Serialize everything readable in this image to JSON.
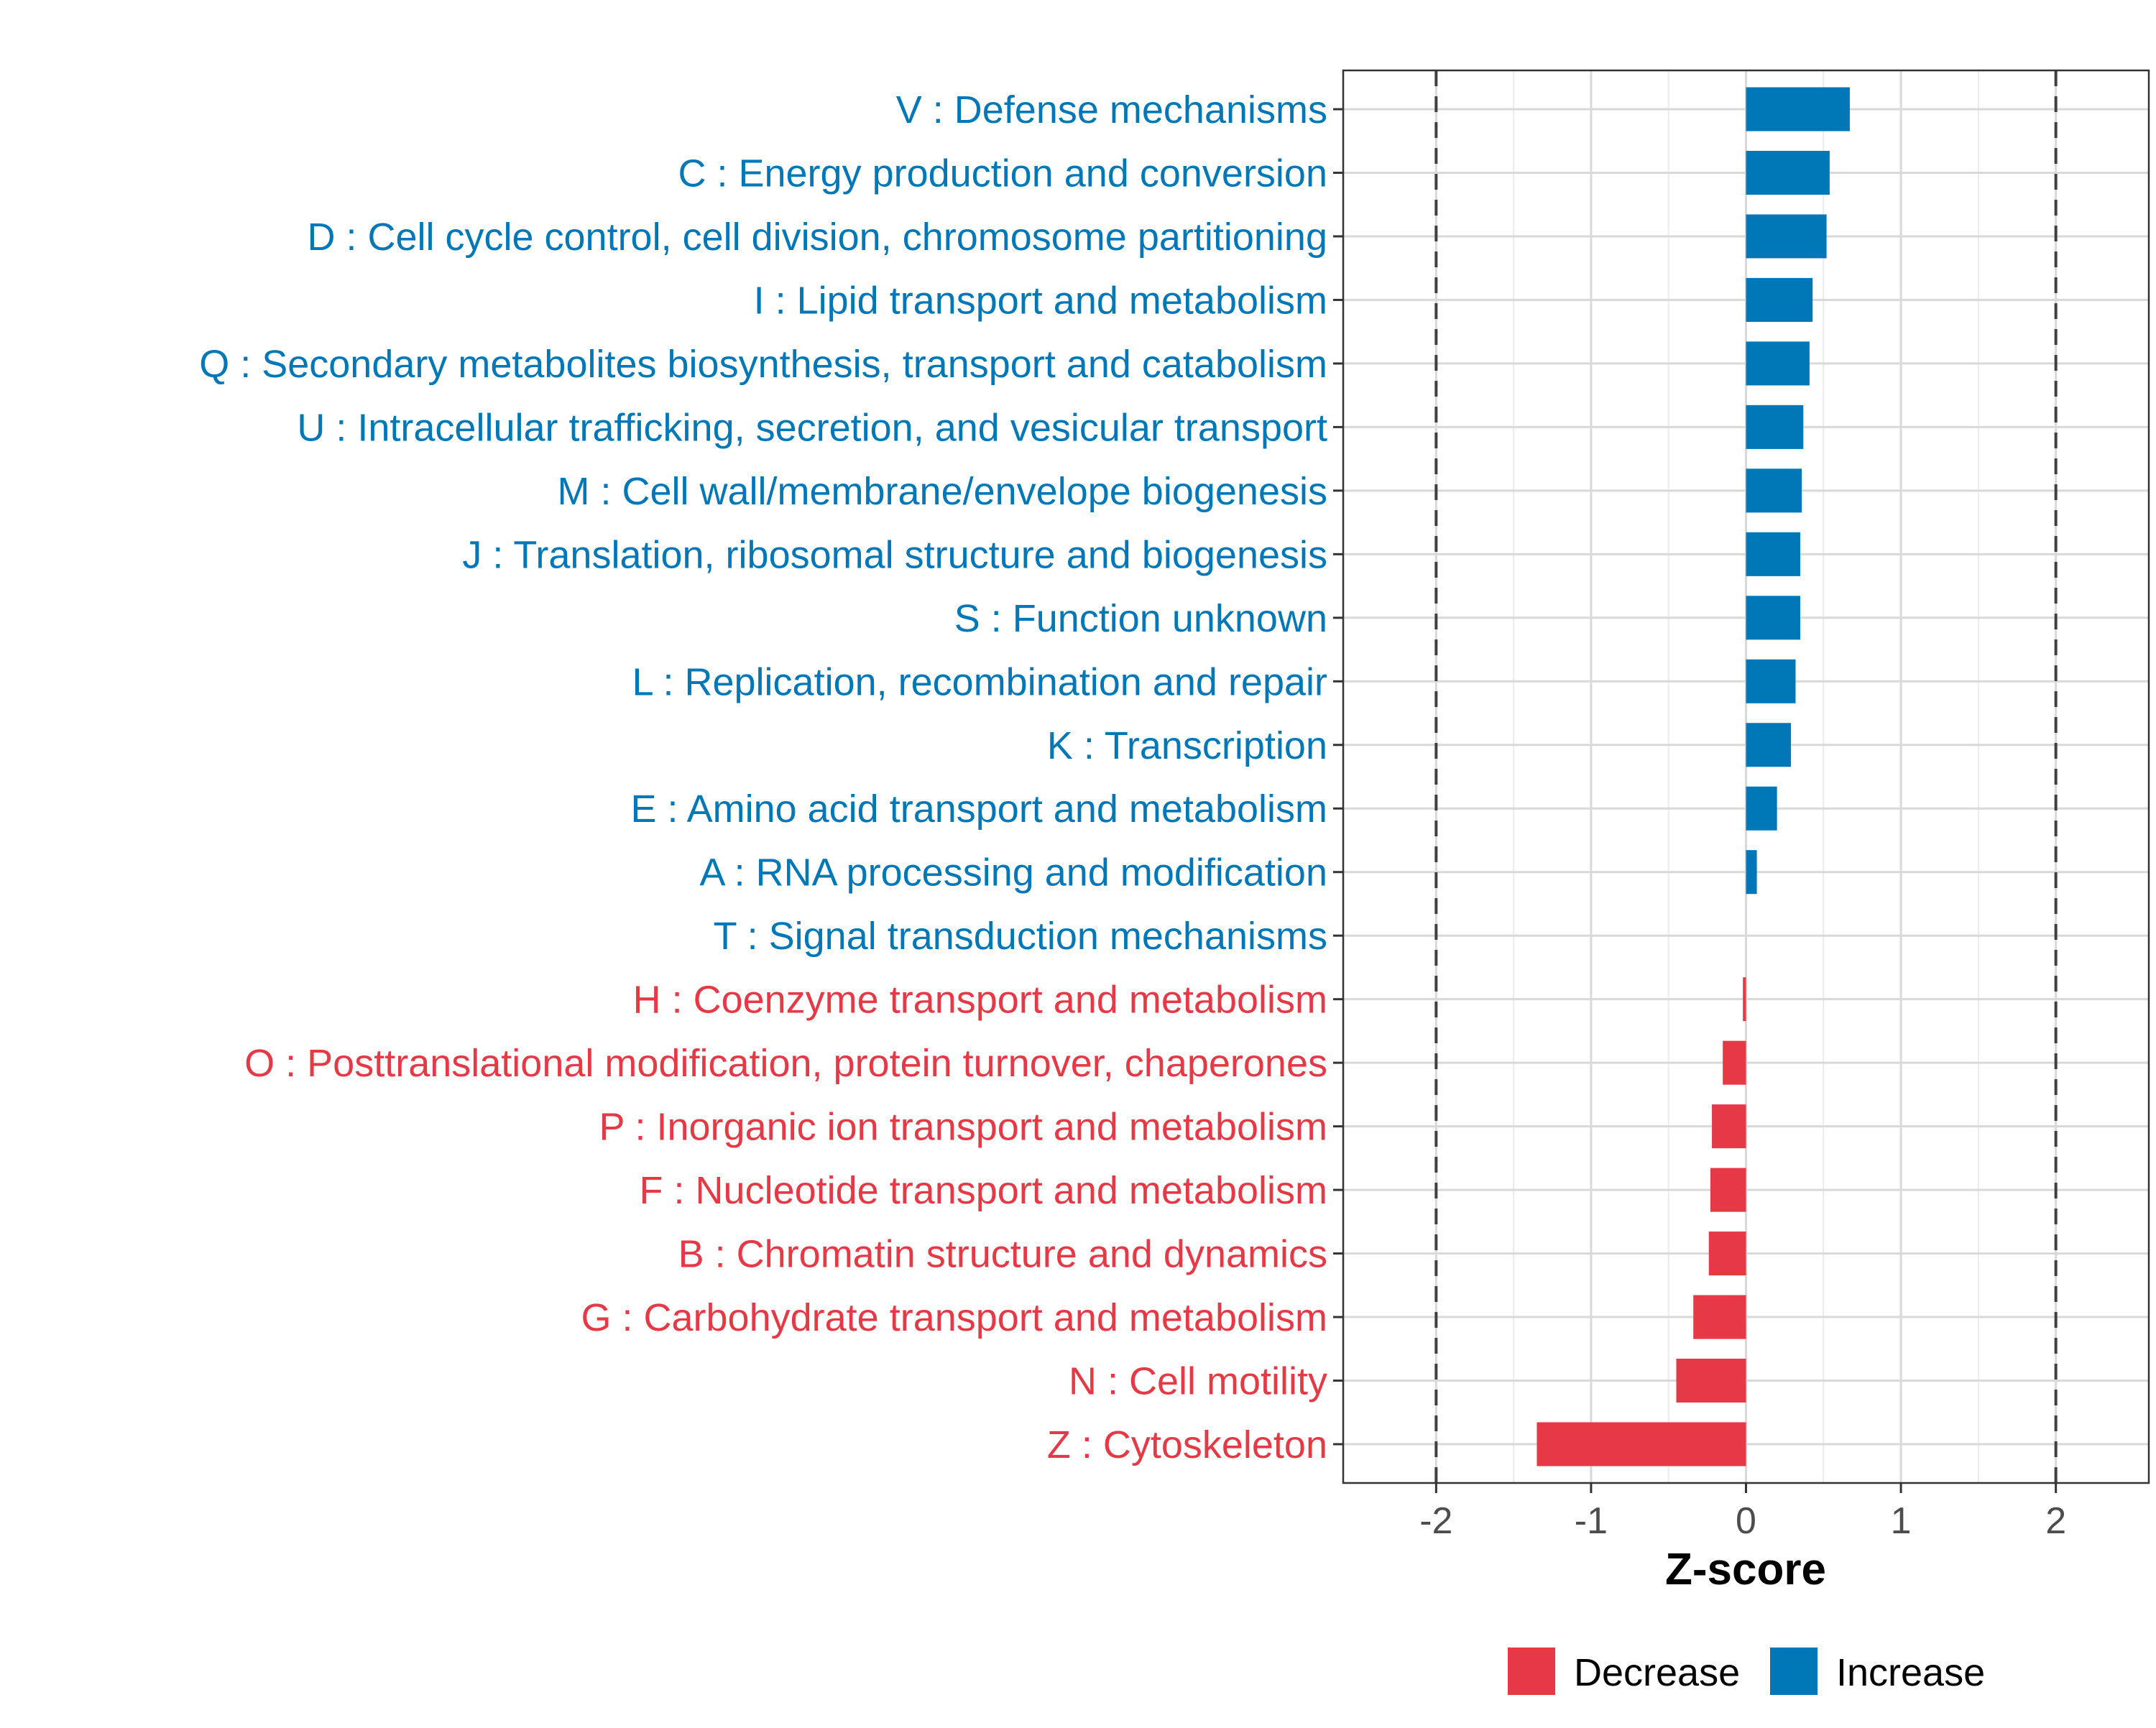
{
  "chart_data": {
    "type": "bar",
    "orientation": "horizontal",
    "xlabel": "Z-score",
    "ylabel": "",
    "xlim": [
      -2.6,
      2.6
    ],
    "xticks": [
      -2,
      -1,
      0,
      1,
      2
    ],
    "xtick_labels": [
      "-2",
      "-1",
      "0",
      "1",
      "2"
    ],
    "reference_lines": [
      -2,
      2
    ],
    "grid": true,
    "legend_position": "bottom",
    "colors": {
      "Decrease": "#e63946",
      "Increase": "#0077b6"
    },
    "legend": [
      {
        "label": "Decrease",
        "color": "#e63946"
      },
      {
        "label": "Increase",
        "color": "#0077b6"
      }
    ],
    "categories": [
      "V : Defense mechanisms",
      "C : Energy production and conversion",
      "D : Cell cycle control, cell division, chromosome partitioning",
      "I : Lipid transport and metabolism",
      "Q : Secondary metabolites biosynthesis, transport and catabolism",
      "U : Intracellular trafficking, secretion, and vesicular transport",
      "M : Cell wall/membrane/envelope biogenesis",
      "J : Translation, ribosomal structure and biogenesis",
      "S : Function unknown",
      "L : Replication, recombination and repair",
      "K : Transcription",
      "E : Amino acid transport and metabolism",
      "A : RNA processing and modification",
      "T : Signal transduction mechanisms",
      "H : Coenzyme transport and metabolism",
      "O : Posttranslational modification, protein turnover, chaperones",
      "P : Inorganic ion transport and metabolism",
      "F : Nucleotide transport and metabolism",
      "B : Chromatin structure and dynamics",
      "G : Carbohydrate transport and metabolism",
      "N : Cell motility",
      "Z : Cytoskeleton"
    ],
    "values": [
      0.67,
      0.54,
      0.52,
      0.43,
      0.41,
      0.37,
      0.36,
      0.35,
      0.35,
      0.32,
      0.29,
      0.2,
      0.07,
      0.0,
      -0.02,
      -0.15,
      -0.22,
      -0.23,
      -0.24,
      -0.34,
      -0.45,
      -1.35
    ],
    "groups": [
      "Increase",
      "Increase",
      "Increase",
      "Increase",
      "Increase",
      "Increase",
      "Increase",
      "Increase",
      "Increase",
      "Increase",
      "Increase",
      "Increase",
      "Increase",
      "Increase",
      "Decrease",
      "Decrease",
      "Decrease",
      "Decrease",
      "Decrease",
      "Decrease",
      "Decrease",
      "Decrease"
    ]
  }
}
